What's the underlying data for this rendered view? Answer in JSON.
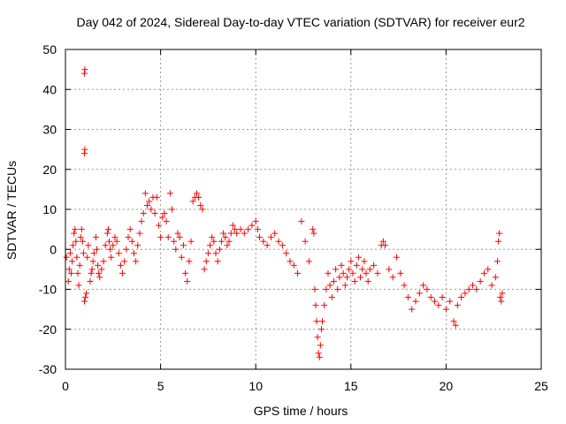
{
  "chart_data": {
    "type": "scatter",
    "title": "Day 042 of 2024, Sidereal Day-to-day VTEC variation (SDTVAR) for receiver eur2",
    "xlabel": "GPS time / hours",
    "ylabel": "SDTVAR / TECUs",
    "xlim": [
      0,
      25
    ],
    "ylim": [
      -30,
      50
    ],
    "xticks": [
      0,
      5,
      10,
      15,
      20,
      25
    ],
    "yticks": [
      -30,
      -20,
      -10,
      0,
      10,
      20,
      30,
      40,
      50
    ],
    "grid": true,
    "marker": "+",
    "color": "#ff0000",
    "series": [
      {
        "name": "SDTVAR",
        "points": [
          [
            0.05,
            -2
          ],
          [
            0.15,
            -8
          ],
          [
            0.2,
            -5
          ],
          [
            0.25,
            -1
          ],
          [
            0.3,
            -6
          ],
          [
            0.35,
            -3
          ],
          [
            0.4,
            1
          ],
          [
            0.45,
            4
          ],
          [
            0.5,
            5
          ],
          [
            0.55,
            2
          ],
          [
            0.6,
            -2
          ],
          [
            0.65,
            -6
          ],
          [
            0.7,
            -9
          ],
          [
            0.75,
            -4
          ],
          [
            0.8,
            3
          ],
          [
            0.85,
            5
          ],
          [
            0.9,
            2
          ],
          [
            0.95,
            -1
          ],
          [
            1.0,
            44
          ],
          [
            1.02,
            45
          ],
          [
            1.0,
            24
          ],
          [
            1.02,
            25
          ],
          [
            1.0,
            -13
          ],
          [
            1.05,
            -12
          ],
          [
            1.1,
            -11
          ],
          [
            1.15,
            -2
          ],
          [
            1.2,
            1
          ],
          [
            1.3,
            -8
          ],
          [
            1.35,
            -6
          ],
          [
            1.4,
            -5
          ],
          [
            1.45,
            -3
          ],
          [
            1.5,
            -1
          ],
          [
            1.6,
            3
          ],
          [
            1.65,
            0
          ],
          [
            1.7,
            -4
          ],
          [
            1.75,
            -6
          ],
          [
            1.8,
            -7
          ],
          [
            1.9,
            -5
          ],
          [
            2.0,
            -3
          ],
          [
            2.1,
            1
          ],
          [
            2.2,
            4
          ],
          [
            2.25,
            5
          ],
          [
            2.3,
            2
          ],
          [
            2.35,
            0
          ],
          [
            2.4,
            -2
          ],
          [
            2.5,
            1
          ],
          [
            2.6,
            3
          ],
          [
            2.7,
            2
          ],
          [
            2.8,
            -1
          ],
          [
            2.9,
            -4
          ],
          [
            3.0,
            -6
          ],
          [
            3.1,
            -3
          ],
          [
            3.2,
            0
          ],
          [
            3.3,
            3
          ],
          [
            3.4,
            5
          ],
          [
            3.5,
            2
          ],
          [
            3.6,
            -1
          ],
          [
            3.7,
            -3
          ],
          [
            3.8,
            1
          ],
          [
            3.9,
            4
          ],
          [
            4.0,
            7
          ],
          [
            4.1,
            9
          ],
          [
            4.2,
            14
          ],
          [
            4.3,
            11
          ],
          [
            4.4,
            12
          ],
          [
            4.5,
            10
          ],
          [
            4.6,
            13
          ],
          [
            4.7,
            9
          ],
          [
            4.8,
            13
          ],
          [
            4.9,
            6
          ],
          [
            5.0,
            3
          ],
          [
            5.1,
            8
          ],
          [
            5.2,
            9
          ],
          [
            5.3,
            7
          ],
          [
            5.4,
            3
          ],
          [
            5.5,
            14
          ],
          [
            5.6,
            10
          ],
          [
            5.7,
            2
          ],
          [
            5.8,
            0
          ],
          [
            5.9,
            4
          ],
          [
            6.0,
            3
          ],
          [
            6.1,
            -2
          ],
          [
            6.2,
            1
          ],
          [
            6.3,
            -6
          ],
          [
            6.4,
            -8
          ],
          [
            6.5,
            -3
          ],
          [
            6.6,
            2
          ],
          [
            6.7,
            12
          ],
          [
            6.8,
            13
          ],
          [
            6.9,
            14
          ],
          [
            7.0,
            13
          ],
          [
            7.1,
            11
          ],
          [
            7.2,
            10
          ],
          [
            7.3,
            -5
          ],
          [
            7.4,
            -3
          ],
          [
            7.5,
            -1
          ],
          [
            7.6,
            1
          ],
          [
            7.7,
            3
          ],
          [
            7.8,
            2
          ],
          [
            7.9,
            -1
          ],
          [
            8.0,
            -3
          ],
          [
            8.1,
            0
          ],
          [
            8.2,
            2
          ],
          [
            8.3,
            4
          ],
          [
            8.4,
            3
          ],
          [
            8.5,
            1
          ],
          [
            8.6,
            2
          ],
          [
            8.7,
            4
          ],
          [
            8.8,
            6
          ],
          [
            8.9,
            5
          ],
          [
            9.0,
            4
          ],
          [
            9.2,
            5
          ],
          [
            9.4,
            4
          ],
          [
            9.6,
            5
          ],
          [
            9.8,
            6
          ],
          [
            10.0,
            7
          ],
          [
            10.1,
            5
          ],
          [
            10.2,
            3
          ],
          [
            10.4,
            2
          ],
          [
            10.6,
            1
          ],
          [
            10.8,
            3
          ],
          [
            11.0,
            4
          ],
          [
            11.2,
            2
          ],
          [
            11.4,
            1
          ],
          [
            11.6,
            -1
          ],
          [
            11.8,
            -3
          ],
          [
            12.0,
            -4
          ],
          [
            12.2,
            -6
          ],
          [
            12.4,
            7
          ],
          [
            12.6,
            2
          ],
          [
            12.8,
            -3
          ],
          [
            13.0,
            5
          ],
          [
            13.05,
            4
          ],
          [
            13.1,
            -10
          ],
          [
            13.15,
            -14
          ],
          [
            13.2,
            -18
          ],
          [
            13.25,
            -22
          ],
          [
            13.3,
            -26
          ],
          [
            13.35,
            -27
          ],
          [
            13.4,
            -24
          ],
          [
            13.45,
            -20
          ],
          [
            13.5,
            -18
          ],
          [
            13.6,
            -14
          ],
          [
            13.7,
            -10
          ],
          [
            13.8,
            -6
          ],
          [
            13.9,
            -9
          ],
          [
            14.0,
            -12
          ],
          [
            14.1,
            -8
          ],
          [
            14.2,
            -5
          ],
          [
            14.3,
            -10
          ],
          [
            14.4,
            -7
          ],
          [
            14.5,
            -4
          ],
          [
            14.6,
            -6
          ],
          [
            14.7,
            -9
          ],
          [
            14.8,
            -7
          ],
          [
            14.9,
            -5
          ],
          [
            15.0,
            -3
          ],
          [
            15.1,
            -6
          ],
          [
            15.2,
            -8
          ],
          [
            15.3,
            -4
          ],
          [
            15.4,
            -2
          ],
          [
            15.5,
            -7
          ],
          [
            15.6,
            -5
          ],
          [
            15.7,
            -3
          ],
          [
            15.8,
            -6
          ],
          [
            15.9,
            -8
          ],
          [
            16.0,
            -5
          ],
          [
            16.2,
            -4
          ],
          [
            16.4,
            -6
          ],
          [
            16.6,
            1
          ],
          [
            16.7,
            2
          ],
          [
            16.8,
            1
          ],
          [
            17.0,
            -5
          ],
          [
            17.2,
            -7
          ],
          [
            17.4,
            -2
          ],
          [
            17.6,
            -6
          ],
          [
            17.8,
            -9
          ],
          [
            18.0,
            -12
          ],
          [
            18.2,
            -15
          ],
          [
            18.4,
            -13
          ],
          [
            18.6,
            -11
          ],
          [
            18.8,
            -9
          ],
          [
            19.0,
            -10
          ],
          [
            19.2,
            -12
          ],
          [
            19.4,
            -13
          ],
          [
            19.6,
            -14
          ],
          [
            19.8,
            -12
          ],
          [
            20.0,
            -15
          ],
          [
            20.2,
            -13
          ],
          [
            20.4,
            -18
          ],
          [
            20.5,
            -19
          ],
          [
            20.6,
            -14
          ],
          [
            20.8,
            -12
          ],
          [
            21.0,
            -11
          ],
          [
            21.2,
            -10
          ],
          [
            21.4,
            -9
          ],
          [
            21.6,
            -10
          ],
          [
            21.8,
            -8
          ],
          [
            22.0,
            -6
          ],
          [
            22.2,
            -5
          ],
          [
            22.4,
            -9
          ],
          [
            22.6,
            -7
          ],
          [
            22.7,
            -3
          ],
          [
            22.75,
            2
          ],
          [
            22.8,
            4
          ],
          [
            22.85,
            -12
          ],
          [
            22.9,
            -13
          ],
          [
            22.95,
            -11
          ]
        ]
      }
    ]
  }
}
